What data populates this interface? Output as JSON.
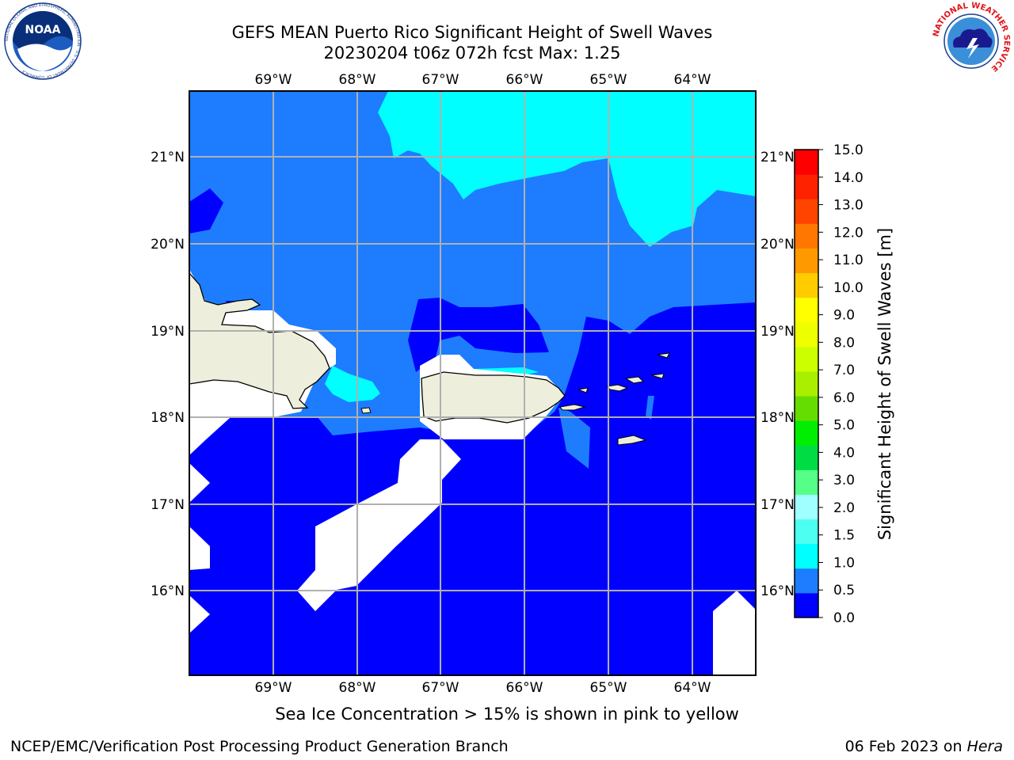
{
  "header": {
    "title_line1": "GEFS MEAN Puerto Rico Significant Height of Swell Waves",
    "title_line2": "20230204 t06z 072h fcst   Max: 1.25"
  },
  "logos": {
    "left": "NOAA",
    "left_ring_text": "NATIONAL OCEANIC AND ATMOSPHERIC ADMINISTRATION · U.S. DEPARTMENT OF COMMERCE",
    "right_ring_text": "NATIONAL WEATHER SERVICE"
  },
  "map": {
    "lon_labels": [
      "69°W",
      "68°W",
      "67°W",
      "66°W",
      "65°W",
      "64°W"
    ],
    "lat_labels": [
      "21°N",
      "20°N",
      "19°N",
      "18°N",
      "17°N",
      "16°N"
    ],
    "colors": {
      "band_0_0_5": "#0000ff",
      "band_0_5_1_0": "#1e7dff",
      "band_1_0_1_5": "#00ffff",
      "land": "#eeeedd",
      "grid": "#b0b0b0"
    }
  },
  "colorbar": {
    "label": "Significant Height of Swell Waves [m]",
    "ticks": [
      "0.0",
      "0.5",
      "1.0",
      "1.5",
      "2.0",
      "3.0",
      "4.0",
      "5.0",
      "6.0",
      "7.0",
      "8.0",
      "9.0",
      "10.0",
      "11.0",
      "12.0",
      "13.0",
      "14.0",
      "15.0"
    ],
    "colors": [
      "#0000ff",
      "#1e7dff",
      "#00ffff",
      "#4dfff0",
      "#a0ffff",
      "#55ff88",
      "#00dd44",
      "#00ee00",
      "#66dd00",
      "#aaee00",
      "#ccff00",
      "#eeff00",
      "#ffff00",
      "#ffcc00",
      "#ff9900",
      "#ff7700",
      "#ff4400",
      "#ff2200",
      "#ff0000"
    ]
  },
  "footer": {
    "caption": "Sea Ice Concentration > 15% is shown in pink to yellow",
    "left": "NCEP/EMC/Verification Post Processing Product Generation Branch",
    "right_prefix": "06 Feb 2023 on ",
    "right_italic": "Hera"
  }
}
